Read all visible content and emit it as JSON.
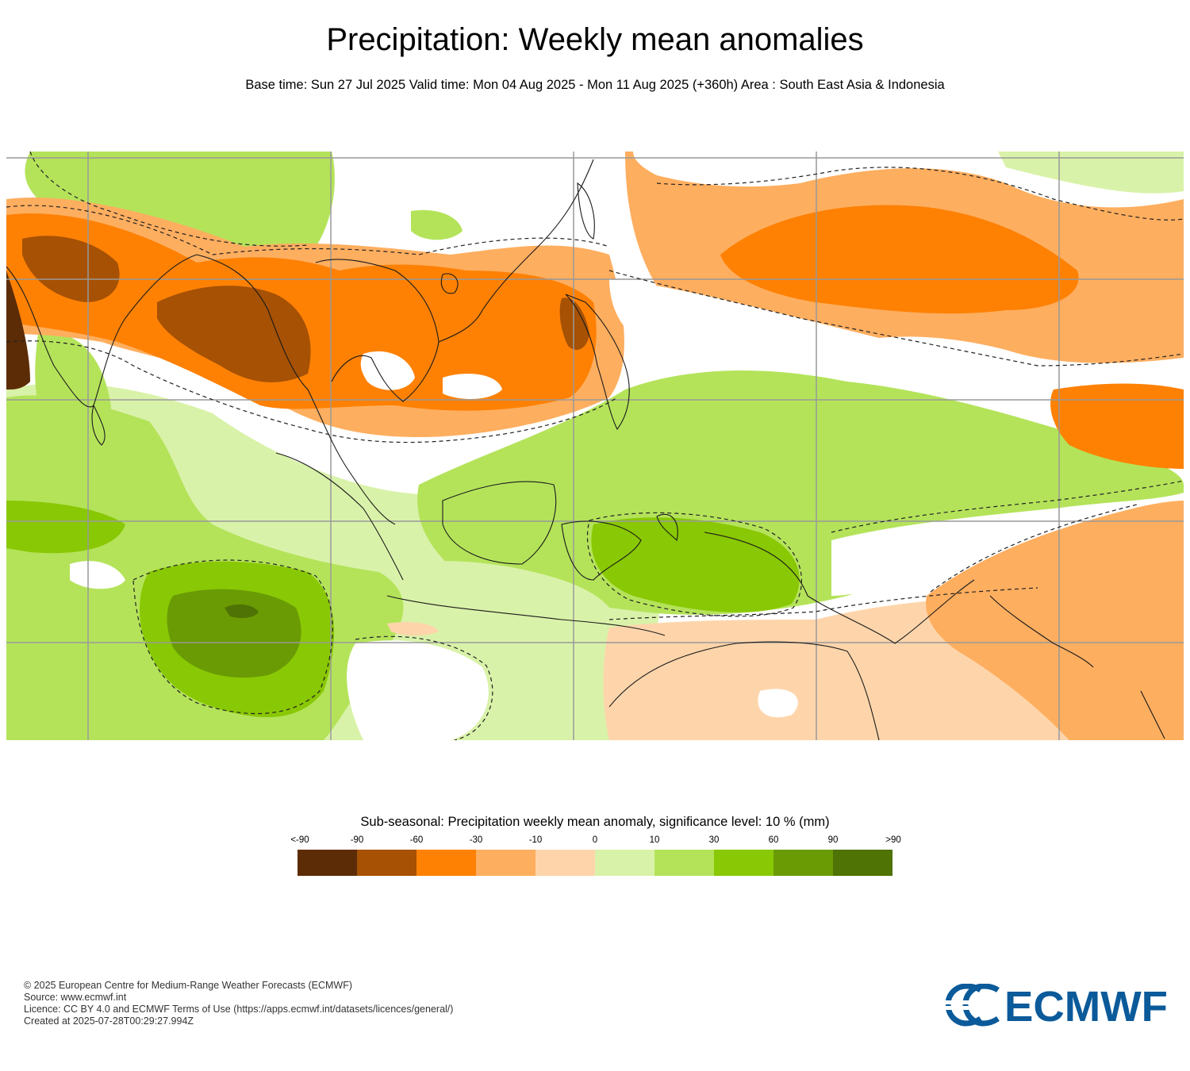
{
  "header": {
    "title": "Precipitation: Weekly mean anomalies",
    "subtitle": "Base time: Sun 27 Jul 2025 Valid time: Mon 04 Aug 2025 - Mon 11 Aug 2025 (+360h) Area : South East Asia & Indonesia"
  },
  "legend": {
    "title": "Sub-seasonal: Precipitation weekly mean anomaly, significance level: 10 % (mm)",
    "labels": [
      "<-90",
      "-90",
      "-60",
      "-30",
      "-10",
      "0",
      "10",
      "30",
      "60",
      "90",
      ">90"
    ],
    "colors": [
      "#5c2c06",
      "#a65104",
      "#fe8104",
      "#feae5f",
      "#fed5ab",
      "#d9f2a9",
      "#b4e35a",
      "#89c804",
      "#6a9b04",
      "#4f7304"
    ]
  },
  "footer": {
    "copyright": "© 2025 European Centre for Medium-Range Weather Forecasts (ECMWF)",
    "source": "Source: www.ecmwf.int",
    "licence": "Licence: CC BY 4.0 and ECMWF Terms of Use (https://apps.ecmwf.int/datasets/licences/general/)",
    "created": "Created at 2025-07-28T00:29:27.994Z"
  },
  "logo": {
    "text": "ECMWF",
    "color": "#0b5a9a"
  }
}
